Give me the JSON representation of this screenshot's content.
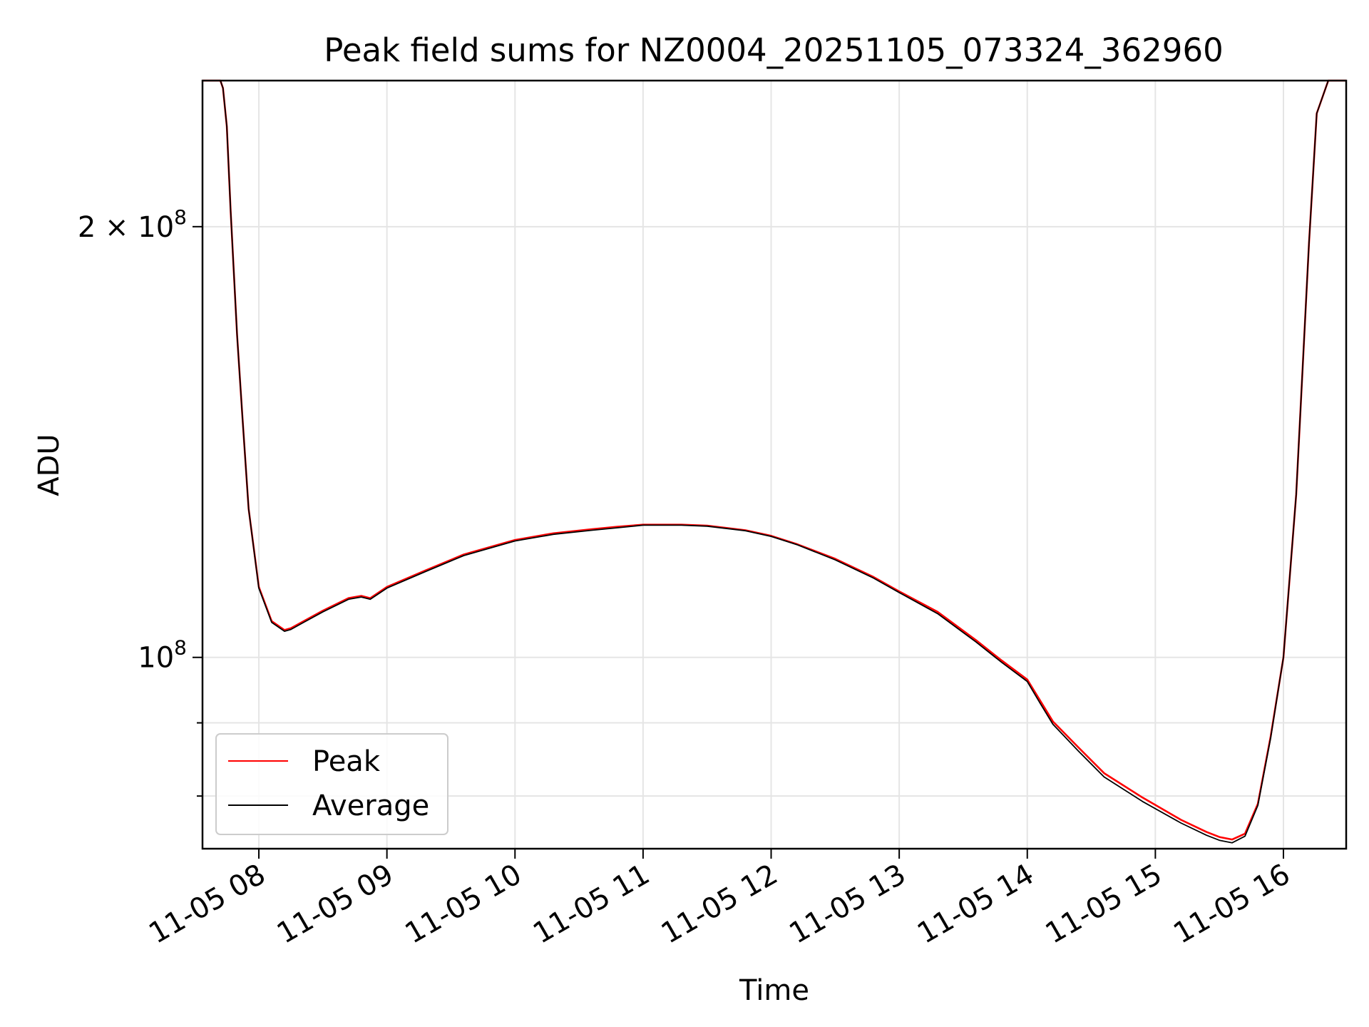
{
  "chart_data": {
    "type": "line",
    "title": "Peak field sums for NZ0004_20251105_073324_362960",
    "xlabel": "Time",
    "ylabel": "ADU",
    "x_unit": "hour of 2025-11-05",
    "xlim": [
      7.56,
      16.49
    ],
    "x_ticks": [
      {
        "value": 8,
        "label": "11-05 08"
      },
      {
        "value": 9,
        "label": "11-05 09"
      },
      {
        "value": 10,
        "label": "11-05 10"
      },
      {
        "value": 11,
        "label": "11-05 11"
      },
      {
        "value": 12,
        "label": "11-05 12"
      },
      {
        "value": 13,
        "label": "11-05 13"
      },
      {
        "value": 14,
        "label": "11-05 14"
      },
      {
        "value": 15,
        "label": "11-05 15"
      },
      {
        "value": 16,
        "label": "11-05 16"
      }
    ],
    "y_scale": "log",
    "ylim": [
      73500000,
      253000000
    ],
    "y_major_ticks": [
      {
        "value": 100000000,
        "mantissa": "",
        "exponent": "8"
      },
      {
        "value": 200000000,
        "mantissa": "2",
        "exponent": "8"
      }
    ],
    "y_minor_ticks": [
      80000000,
      90000000
    ],
    "grid": true,
    "legend": {
      "position": "lower-left"
    },
    "series": [
      {
        "name": "Peak",
        "color": "#ff0000",
        "x": [
          7.56,
          7.7,
          7.72,
          7.75,
          7.78,
          7.83,
          7.87,
          7.92,
          8.0,
          8.1,
          8.2,
          8.25,
          8.35,
          8.5,
          8.7,
          8.8,
          8.87,
          9.0,
          9.3,
          9.6,
          10.0,
          10.3,
          10.6,
          10.8,
          11.0,
          11.3,
          11.5,
          11.8,
          12.0,
          12.2,
          12.5,
          12.8,
          13.0,
          13.3,
          13.6,
          13.8,
          14.0,
          14.1,
          14.2,
          14.4,
          14.6,
          14.9,
          15.2,
          15.4,
          15.5,
          15.6,
          15.7,
          15.8,
          15.9,
          16.0,
          16.1,
          16.2,
          16.26,
          16.35,
          16.49
        ],
        "y": [
          253000000,
          253000000,
          250000000,
          235000000,
          205000000,
          168000000,
          148000000,
          127000000,
          112000000,
          106000000,
          104500000,
          104800000,
          106000000,
          107800000,
          110000000,
          110400000,
          110000000,
          112000000,
          115000000,
          118000000,
          120800000,
          122100000,
          122900000,
          123400000,
          123800000,
          123800000,
          123600000,
          122700000,
          121600000,
          120000000,
          117200000,
          113800000,
          111200000,
          107600000,
          102800000,
          99500000,
          96500000,
          93300000,
          90200000,
          86500000,
          83000000,
          79800000,
          77000000,
          75500000,
          74900000,
          74600000,
          75300000,
          79000000,
          88000000,
          100000000,
          130000000,
          195000000,
          240000000,
          253000000,
          253000000
        ]
      },
      {
        "name": "Average",
        "color": "#000000",
        "x": [
          7.56,
          7.7,
          7.72,
          7.75,
          7.78,
          7.83,
          7.87,
          7.92,
          8.0,
          8.1,
          8.2,
          8.25,
          8.35,
          8.5,
          8.7,
          8.8,
          8.87,
          9.0,
          9.3,
          9.6,
          10.0,
          10.3,
          10.6,
          10.8,
          11.0,
          11.3,
          11.5,
          11.8,
          12.0,
          12.2,
          12.5,
          12.8,
          13.0,
          13.3,
          13.6,
          13.8,
          14.0,
          14.1,
          14.2,
          14.4,
          14.6,
          14.9,
          15.2,
          15.4,
          15.5,
          15.6,
          15.7,
          15.8,
          15.9,
          16.0,
          16.1,
          16.2,
          16.26,
          16.35,
          16.49
        ],
        "y": [
          253000000,
          253000000,
          250000000,
          235000000,
          205000000,
          168000000,
          148000000,
          127000000,
          111800000,
          105800000,
          104300000,
          104600000,
          105800000,
          107600000,
          109800000,
          110200000,
          109800000,
          111800000,
          114800000,
          117800000,
          120600000,
          121900000,
          122700000,
          123200000,
          123700000,
          123700000,
          123500000,
          122600000,
          121500000,
          119900000,
          117000000,
          113600000,
          111000000,
          107300000,
          102500000,
          99200000,
          96200000,
          92900000,
          89800000,
          86000000,
          82500000,
          79300000,
          76600000,
          75100000,
          74500000,
          74200000,
          75000000,
          78800000,
          87800000,
          100000000,
          130000000,
          195000000,
          240000000,
          253000000,
          253000000
        ]
      }
    ]
  }
}
